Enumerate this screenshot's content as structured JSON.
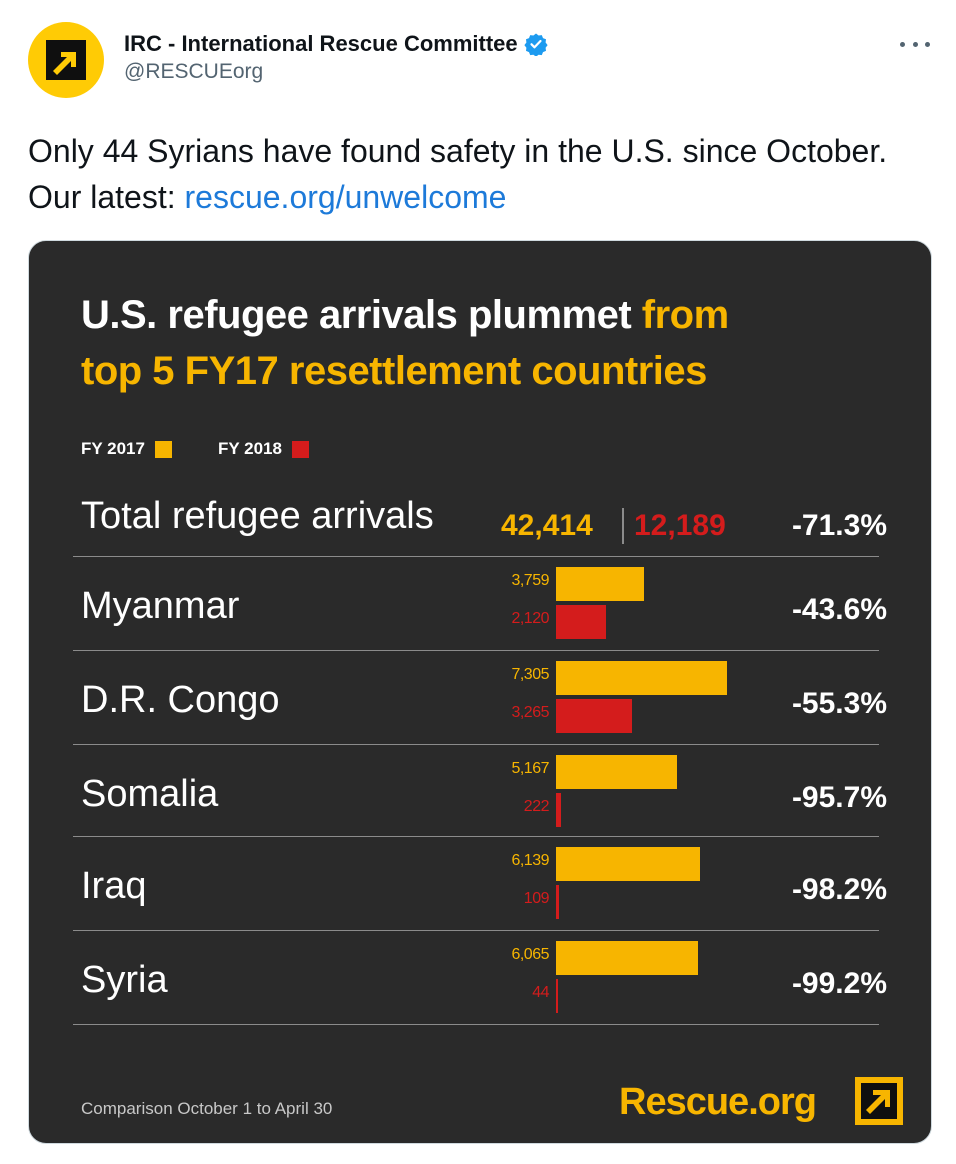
{
  "tweet": {
    "display_name": "IRC - International Rescue Committee",
    "handle": "@RESCUEorg",
    "text": "Only 44 Syrians have found safety in the U.S. since October. Our latest: ",
    "link": "rescue.org/unwelcome",
    "more_icon": "more-horizontal-icon",
    "verified_icon": "verified-badge-icon"
  },
  "infographic": {
    "title_white": "U.S. refugee arrivals plummet ",
    "title_highlight_1": "from",
    "title_highlight_2": "top 5 FY17 resettlement countries",
    "legend": [
      {
        "label": "FY 2017",
        "color": "#f7b500"
      },
      {
        "label": "FY 2018",
        "color": "#d41c1c"
      }
    ],
    "total": {
      "label": "Total refugee arrivals",
      "fy2017": "42,414",
      "fy2018": "12,189",
      "change": "-71.3%"
    },
    "footnote": "Comparison October 1 to April 30",
    "brand": "Rescue.org",
    "colors": {
      "fy2017": "#f7b500",
      "fy2018": "#d41c1c",
      "background": "#2a2a2a"
    }
  },
  "chart_data": {
    "type": "bar",
    "categories": [
      "Myanmar",
      "D.R. Congo",
      "Somalia",
      "Iraq",
      "Syria"
    ],
    "series": [
      {
        "name": "FY 2017",
        "values": [
          3759,
          7305,
          5167,
          6139,
          6065
        ]
      },
      {
        "name": "FY 2018",
        "values": [
          2120,
          3265,
          222,
          109,
          44
        ]
      }
    ],
    "value_labels": {
      "FY 2017": [
        "3,759",
        "7,305",
        "5,167",
        "6,139",
        "6,065"
      ],
      "FY 2018": [
        "2,120",
        "3,265",
        "222",
        "109",
        "44"
      ]
    },
    "changes": [
      "-43.6%",
      "-55.3%",
      "-95.7%",
      "-98.2%",
      "-99.2%"
    ],
    "orientation": "horizontal",
    "xlim": [
      0,
      7305
    ]
  }
}
